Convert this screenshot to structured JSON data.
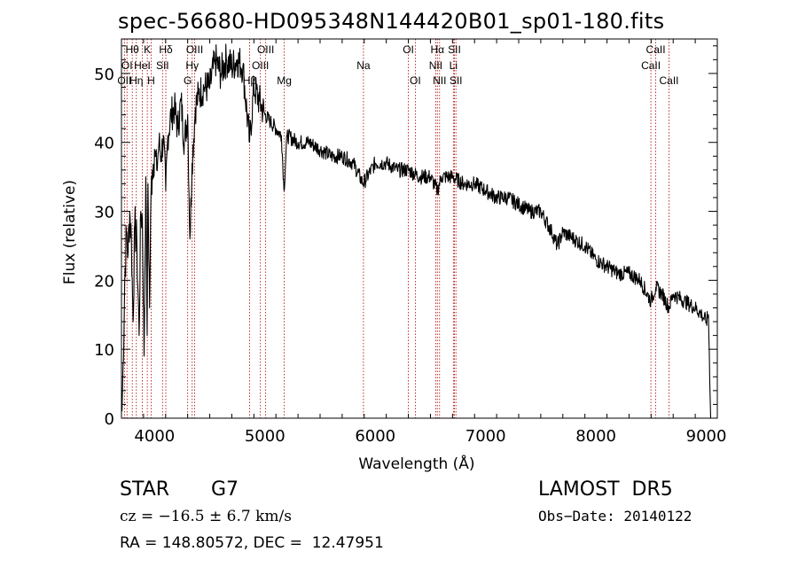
{
  "title": "spec-56680-HD095348N144420B01_sp01-180.fits",
  "footer": {
    "class_label": "STAR",
    "subclass": "G7",
    "survey": "LAMOST  DR5",
    "cz": "cz = −16.5 ± 6.7 km/s",
    "obs_date": "Obs−Date: 20140122",
    "radec": "RA = 148.80572, DEC =  12.47951"
  },
  "chart_data": {
    "type": "line",
    "title": "spec-56680-HD095348N144420B01_sp01-180.fits",
    "xlabel": "Wavelength (Å)",
    "ylabel": "Flux (relative)",
    "xlim": [
      3700,
      9100
    ],
    "ylim": [
      0,
      55
    ],
    "xticks": [
      4000,
      5000,
      6000,
      7000,
      8000,
      9000
    ],
    "yticks": [
      0,
      10,
      20,
      30,
      40,
      50
    ],
    "grid": false,
    "colors": {
      "spectrum": "#000000",
      "line_markers": "#b00000"
    },
    "series": [
      {
        "x": [
          3705,
          3715,
          3730,
          3745,
          3760,
          3775,
          3790,
          3805,
          3820,
          3840,
          3860,
          3875,
          3890,
          3905,
          3920,
          3933,
          3940,
          3955,
          3968,
          3980,
          4000,
          4020,
          4040,
          4060,
          4080,
          4101,
          4120,
          4150,
          4180,
          4210,
          4240,
          4270,
          4300,
          4320,
          4340,
          4370,
          4400,
          4450,
          4500,
          4550,
          4600,
          4650,
          4700,
          4750,
          4800,
          4861,
          4900,
          4950,
          5000,
          5050,
          5100,
          5150,
          5173,
          5200,
          5300,
          5400,
          5500,
          5600,
          5700,
          5800,
          5890,
          6000,
          6100,
          6200,
          6300,
          6400,
          6500,
          6563,
          6600,
          6700,
          6800,
          6900,
          7000,
          7100,
          7200,
          7300,
          7400,
          7500,
          7600,
          7650,
          7700,
          7800,
          7900,
          8000,
          8100,
          8200,
          8300,
          8400,
          8498,
          8542,
          8600,
          8662,
          8700,
          8800,
          8900,
          8960,
          9000,
          9020,
          9040
        ],
        "y": [
          1,
          8,
          20,
          27,
          24,
          30,
          26,
          14,
          28,
          25,
          12,
          30,
          29,
          9,
          35,
          12,
          34,
          16,
          33,
          36,
          39,
          36,
          40,
          38,
          41,
          33,
          41,
          44,
          45,
          42,
          46,
          40,
          44,
          26,
          37,
          45,
          47,
          48,
          48,
          52,
          50,
          52,
          51,
          52,
          51,
          40,
          48,
          46,
          44,
          43,
          42,
          41,
          33,
          41,
          40,
          40,
          39,
          38,
          38,
          37,
          34,
          37,
          37,
          36,
          36,
          35,
          35,
          33,
          35,
          35,
          34,
          34,
          33,
          32,
          32,
          31,
          30,
          30,
          27,
          25,
          27,
          26,
          25,
          23,
          22,
          21,
          21,
          20,
          17,
          19,
          18,
          16,
          18,
          17,
          16,
          15,
          14,
          15,
          0
        ]
      }
    ],
    "lines": [
      {
        "x": 3727,
        "label": "OII",
        "row": 2
      },
      {
        "x": 3750,
        "label": "OI",
        "row": 1
      },
      {
        "x": 3798,
        "label": "Hθ",
        "row": 0
      },
      {
        "x": 3835,
        "label": "Hη",
        "row": 2
      },
      {
        "x": 3889,
        "label": "HeI",
        "row": 1
      },
      {
        "x": 3934,
        "label": "K",
        "row": 0
      },
      {
        "x": 3969,
        "label": "H",
        "row": 2
      },
      {
        "x": 4072,
        "label": "SII",
        "row": 1
      },
      {
        "x": 4102,
        "label": "Hδ",
        "row": 0
      },
      {
        "x": 4300,
        "label": "G",
        "row": 2
      },
      {
        "x": 4341,
        "label": "Hγ",
        "row": 1
      },
      {
        "x": 4363,
        "label": "OIII",
        "row": 0
      },
      {
        "x": 4861,
        "label": "Hβ",
        "row": 2
      },
      {
        "x": 4959,
        "label": "OIII",
        "row": 1
      },
      {
        "x": 5007,
        "label": "OIII",
        "row": 0
      },
      {
        "x": 5175,
        "label": "Mg",
        "row": 2
      },
      {
        "x": 5893,
        "label": "Na",
        "row": 1
      },
      {
        "x": 6300,
        "label": "OI",
        "row": 0
      },
      {
        "x": 6363,
        "label": "OI",
        "row": 2
      },
      {
        "x": 6548,
        "label": "NII",
        "row": 1
      },
      {
        "x": 6563,
        "label": "Hα",
        "row": 0
      },
      {
        "x": 6583,
        "label": "NII",
        "row": 2
      },
      {
        "x": 6708,
        "label": "Li",
        "row": 1
      },
      {
        "x": 6717,
        "label": "SII",
        "row": 0
      },
      {
        "x": 6731,
        "label": "SII",
        "row": 2
      },
      {
        "x": 8498,
        "label": "CaII",
        "row": 1
      },
      {
        "x": 8542,
        "label": "CaII",
        "row": 0
      },
      {
        "x": 8662,
        "label": "CaII",
        "row": 2
      }
    ]
  }
}
